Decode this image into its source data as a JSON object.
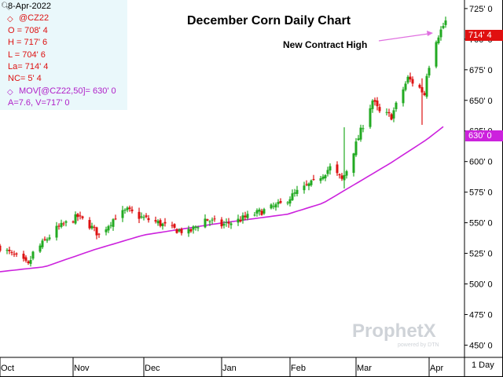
{
  "info_panel": {
    "date": "8-Apr-2022",
    "symbol": "@CZ22",
    "open": "O = 708' 4",
    "high": "H = 717' 6",
    "low": "L = 704' 6",
    "last": "La= 714' 4",
    "net_change": "NC= 5' 4",
    "moving_average": "MOV[@CZ22,50]= 630' 0",
    "volume_line": "A=7.6, V=717' 0",
    "icons": {
      "zoom": "magnifier-icon",
      "series_marker": "diamond-icon"
    }
  },
  "watermark": {
    "brand": "ProphetX",
    "sub": "powered by DTN"
  },
  "interval_label": "1 Day",
  "price_tag": "714' 4",
  "ma_tag": "630' 0",
  "colors": {
    "up_candle": "#22aa22",
    "down_candle": "#dd1111",
    "moving_average": "#cc22dd",
    "price_tag_bg": "#e01010",
    "ma_tag_bg": "#cc22dd",
    "info_bg": "#eaf8fb",
    "annotation_arrow": "#e070e0"
  },
  "chart_data": {
    "type": "candlestick",
    "title": "December Corn Daily Chart",
    "annotations": [
      {
        "text": "New Contract High"
      }
    ],
    "ylim": [
      440,
      732
    ],
    "y_ticks": [
      "450' 0",
      "475' 0",
      "500' 0",
      "525' 0",
      "550' 0",
      "575' 0",
      "600' 0",
      "625' 0",
      "650' 0",
      "675' 0",
      "700' 0",
      "725' 0"
    ],
    "y_tick_values": [
      450,
      475,
      500,
      525,
      550,
      575,
      600,
      625,
      650,
      675,
      700,
      725
    ],
    "x_ticks": [
      "Oct",
      "Nov",
      "Dec",
      "Jan",
      "Feb",
      "Mar",
      "Apr"
    ],
    "x_tick_dates": [
      "2021-10-01",
      "2021-11-01",
      "2021-12-01",
      "2022-01-03",
      "2022-02-01",
      "2022-03-01",
      "2022-04-01"
    ],
    "x_range": [
      "2021-10-01",
      "2022-04-08"
    ],
    "grid": false,
    "price_key_points": [
      [
        "2021-10-01",
        530
      ],
      [
        "2021-10-11",
        518
      ],
      [
        "2021-10-13",
        515
      ],
      [
        "2021-10-15",
        525
      ],
      [
        "2021-10-25",
        545
      ],
      [
        "2021-11-03",
        555
      ],
      [
        "2021-11-08",
        548
      ],
      [
        "2021-11-12",
        540
      ],
      [
        "2021-11-19",
        555
      ],
      [
        "2021-11-24",
        560
      ],
      [
        "2021-11-29",
        555
      ],
      [
        "2021-12-07",
        550
      ],
      [
        "2021-12-13",
        545
      ],
      [
        "2021-12-20",
        542
      ],
      [
        "2021-12-27",
        553
      ],
      [
        "2022-01-03",
        548
      ],
      [
        "2022-01-10",
        552
      ],
      [
        "2022-01-14",
        555
      ],
      [
        "2022-01-21",
        560
      ],
      [
        "2022-01-28",
        565
      ],
      [
        "2022-02-04",
        575
      ],
      [
        "2022-02-11",
        583
      ],
      [
        "2022-02-18",
        595
      ],
      [
        "2022-02-23",
        585
      ],
      [
        "2022-02-25",
        593
      ],
      [
        "2022-03-04",
        630
      ],
      [
        "2022-03-08",
        650
      ],
      [
        "2022-03-11",
        640
      ],
      [
        "2022-03-16",
        637
      ],
      [
        "2022-03-23",
        668
      ],
      [
        "2022-03-28",
        660
      ],
      [
        "2022-03-30",
        655
      ],
      [
        "2022-03-31",
        672
      ],
      [
        "2022-04-04",
        700
      ],
      [
        "2022-04-08",
        714.5
      ]
    ],
    "spikes": [
      {
        "date": "2022-02-24",
        "high": 628,
        "low": 578
      },
      {
        "date": "2022-03-29",
        "high": 668,
        "low": 630
      }
    ],
    "moving_average_key_points": [
      [
        "2021-10-01",
        510
      ],
      [
        "2021-10-20",
        514
      ],
      [
        "2021-11-10",
        528
      ],
      [
        "2021-12-01",
        540
      ],
      [
        "2021-12-31",
        549
      ],
      [
        "2022-01-31",
        557
      ],
      [
        "2022-02-15",
        566
      ],
      [
        "2022-03-01",
        582
      ],
      [
        "2022-03-15",
        598
      ],
      [
        "2022-03-31",
        618
      ],
      [
        "2022-04-08",
        630
      ]
    ]
  }
}
